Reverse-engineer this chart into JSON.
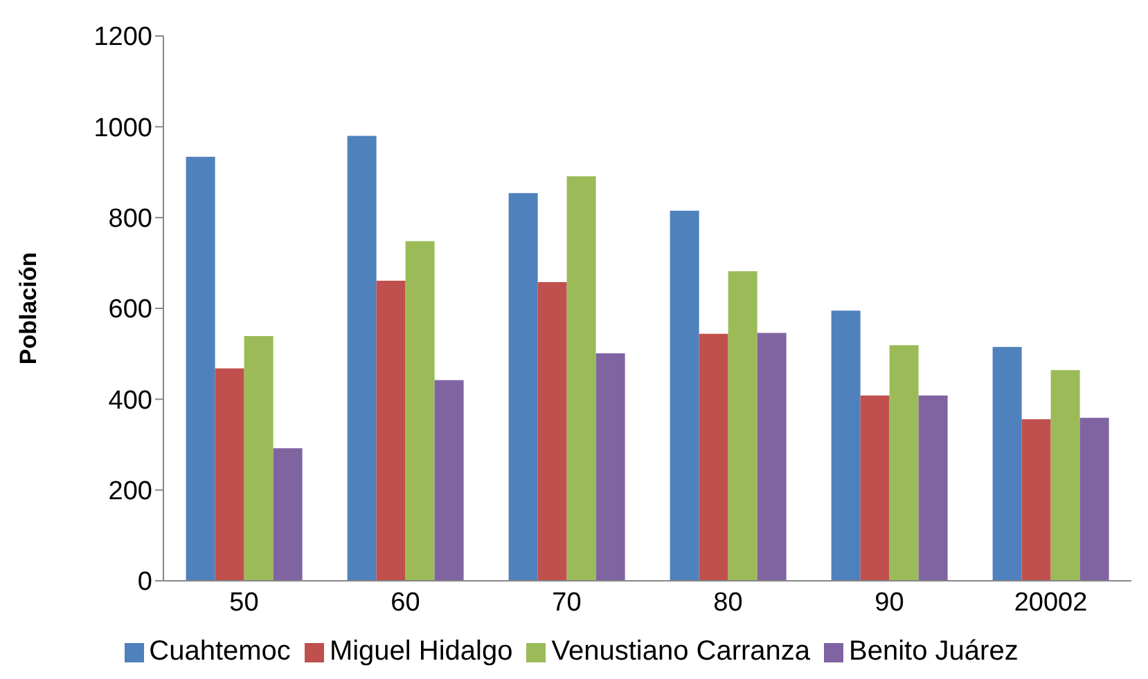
{
  "chart_data": {
    "type": "bar",
    "ylabel": "Población",
    "categories": [
      "50",
      "60",
      "70",
      "80",
      "90",
      "20002"
    ],
    "series": [
      {
        "name": "Cuahtemoc",
        "color": "#4f81bd",
        "values": [
          934,
          980,
          854,
          815,
          595,
          515
        ]
      },
      {
        "name": "Miguel Hidalgo",
        "color": "#c0504d",
        "values": [
          468,
          661,
          658,
          544,
          408,
          356
        ]
      },
      {
        "name": "Venustiano Carranza",
        "color": "#9bbb59",
        "values": [
          539,
          748,
          891,
          682,
          519,
          464
        ]
      },
      {
        "name": "Benito Juárez",
        "color": "#8064a2",
        "values": [
          292,
          442,
          501,
          546,
          408,
          359
        ]
      }
    ],
    "ylim": [
      0,
      1200
    ],
    "yticks": [
      0,
      200,
      400,
      600,
      800,
      1000,
      1200
    ],
    "grid": false,
    "legend": "bottom"
  }
}
